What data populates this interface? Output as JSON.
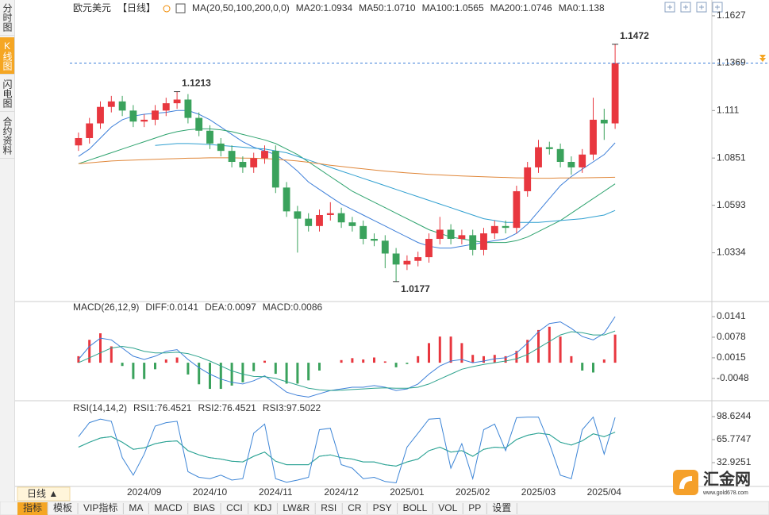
{
  "ui": {
    "sidebar_tabs": [
      "分时图",
      "K线图",
      "闪电图",
      "合约资料"
    ],
    "sidebar_active": "K线图",
    "period_button": "日线 ▲",
    "bottom_tabs": [
      "指标",
      "模板",
      "VIP指标",
      "MA",
      "MACD",
      "BIAS",
      "CCI",
      "KDJ",
      "LW&R",
      "RSI",
      "CR",
      "PSY",
      "BOLL",
      "VOL",
      "PP",
      "设置"
    ],
    "bottom_active": "指标",
    "bottom_highlight": "VIP指标",
    "logo": "汇金网",
    "logo_url": "www.gold678.com"
  },
  "chart_data": [
    {
      "type": "candlestick",
      "title": "欧元美元",
      "period": "【日线】",
      "indicator": "MA(20,50,100,200,0,0)",
      "categories": [
        null,
        null,
        null,
        null,
        null,
        null,
        "2024/09",
        null,
        null,
        null,
        null,
        null,
        "2024/10",
        null,
        null,
        null,
        null,
        null,
        "2024/11",
        null,
        null,
        null,
        null,
        null,
        "2024/12",
        null,
        null,
        null,
        null,
        null,
        "2025/01",
        null,
        null,
        null,
        null,
        null,
        "2025/02",
        null,
        null,
        null,
        null,
        null,
        "2025/03",
        null,
        null,
        null,
        null,
        null,
        "2025/04",
        null
      ],
      "open": [
        1.092,
        1.096,
        1.104,
        1.113,
        1.116,
        1.111,
        1.105,
        1.106,
        1.111,
        1.115,
        1.117,
        1.107,
        1.1,
        1.093,
        1.089,
        1.083,
        1.08,
        1.085,
        1.089,
        1.069,
        1.056,
        1.052,
        1.048,
        1.054,
        1.055,
        1.05,
        1.048,
        1.041,
        1.04,
        1.033,
        1.027,
        1.029,
        1.031,
        1.041,
        1.046,
        1.041,
        1.043,
        1.035,
        1.044,
        1.048,
        1.047,
        1.067,
        1.08,
        1.091,
        1.09,
        1.083,
        1.08,
        1.087,
        1.106,
        1.104
      ],
      "high": [
        1.099,
        1.107,
        1.116,
        1.119,
        1.119,
        1.114,
        1.109,
        1.114,
        1.118,
        1.1213,
        1.12,
        1.11,
        1.103,
        1.096,
        1.092,
        1.086,
        1.088,
        1.092,
        1.092,
        1.072,
        1.059,
        1.055,
        1.057,
        1.061,
        1.058,
        1.053,
        1.051,
        1.044,
        1.043,
        1.036,
        1.032,
        1.034,
        1.044,
        1.053,
        1.049,
        1.046,
        1.046,
        1.047,
        1.051,
        1.051,
        1.07,
        1.083,
        1.095,
        1.094,
        1.093,
        1.086,
        1.09,
        1.118,
        1.112,
        1.1472
      ],
      "low": [
        1.089,
        1.093,
        1.101,
        1.11,
        1.108,
        1.102,
        1.102,
        1.103,
        1.108,
        1.112,
        1.104,
        1.097,
        1.09,
        1.086,
        1.08,
        1.077,
        1.077,
        1.082,
        1.066,
        1.053,
        1.0335,
        1.045,
        1.045,
        1.051,
        1.047,
        1.045,
        1.038,
        1.037,
        1.025,
        1.0177,
        1.024,
        1.026,
        1.028,
        1.038,
        1.038,
        1.038,
        1.032,
        1.032,
        1.041,
        1.044,
        1.044,
        1.064,
        1.077,
        1.087,
        1.08,
        1.076,
        1.077,
        1.084,
        1.095,
        1.101
      ],
      "close": [
        1.096,
        1.104,
        1.113,
        1.116,
        1.111,
        1.105,
        1.106,
        1.111,
        1.115,
        1.117,
        1.107,
        1.1,
        1.093,
        1.089,
        1.083,
        1.08,
        1.085,
        1.089,
        1.069,
        1.056,
        1.052,
        1.048,
        1.054,
        1.055,
        1.05,
        1.048,
        1.041,
        1.04,
        1.033,
        1.027,
        1.029,
        1.031,
        1.041,
        1.046,
        1.041,
        1.043,
        1.035,
        1.044,
        1.048,
        1.047,
        1.067,
        1.08,
        1.091,
        1.09,
        1.083,
        1.08,
        1.087,
        1.106,
        1.104,
        1.1369
      ],
      "up_color": "#e8373f",
      "down_color": "#3aa25c",
      "last_price_line": true,
      "grid": false,
      "ylim": [
        1.0068,
        1.167
      ],
      "yticks": [
        1.1627,
        1.1369,
        1.111,
        1.0851,
        1.0593,
        1.0334
      ],
      "series": [
        {
          "name": "MA20:1.0934",
          "color": "#3d7fd9",
          "values": [
            1.086,
            1.09,
            1.096,
            1.102,
            1.106,
            1.108,
            1.109,
            1.1095,
            1.11,
            1.111,
            1.111,
            1.109,
            1.106,
            1.102,
            1.098,
            1.094,
            1.091,
            1.089,
            1.087,
            1.083,
            1.078,
            1.072,
            1.068,
            1.064,
            1.06,
            1.057,
            1.054,
            1.051,
            1.048,
            1.045,
            1.042,
            1.039,
            1.037,
            1.036,
            1.036,
            1.037,
            1.038,
            1.039,
            1.04,
            1.041,
            1.044,
            1.049,
            1.056,
            1.063,
            1.07,
            1.075,
            1.079,
            1.083,
            1.087,
            1.0934
          ]
        },
        {
          "name": "MA50:1.0710",
          "color": "#2ea36e",
          "values": [
            1.082,
            1.084,
            1.086,
            1.088,
            1.09,
            1.092,
            1.094,
            1.096,
            1.098,
            1.0995,
            1.1005,
            1.101,
            1.101,
            1.1005,
            1.0995,
            1.098,
            1.0965,
            1.095,
            1.093,
            1.09,
            1.087,
            1.083,
            1.079,
            1.075,
            1.071,
            1.067,
            1.064,
            1.061,
            1.058,
            1.055,
            1.052,
            1.049,
            1.046,
            1.044,
            1.042,
            1.041,
            1.04,
            1.039,
            1.039,
            1.039,
            1.04,
            1.042,
            1.045,
            1.048,
            1.051,
            1.055,
            1.059,
            1.063,
            1.067,
            1.071
          ]
        },
        {
          "name": "MA100:1.0565",
          "color": "#2f9fd0",
          "values": [
            null,
            null,
            null,
            null,
            null,
            null,
            null,
            1.092,
            1.0925,
            1.093,
            1.093,
            1.0928,
            1.0925,
            1.092,
            1.0915,
            1.091,
            1.0905,
            1.09,
            1.089,
            1.088,
            1.086,
            1.084,
            1.082,
            1.08,
            1.078,
            1.076,
            1.074,
            1.072,
            1.07,
            1.068,
            1.066,
            1.064,
            1.062,
            1.06,
            1.058,
            1.056,
            1.054,
            1.052,
            1.051,
            1.05,
            1.05,
            1.05,
            1.05,
            1.0505,
            1.051,
            1.0515,
            1.052,
            1.053,
            1.054,
            1.0565
          ]
        },
        {
          "name": "MA200:1.0746",
          "color": "#e0873a",
          "values": [
            1.082,
            1.0825,
            1.083,
            1.0835,
            1.0838,
            1.084,
            1.0842,
            1.0844,
            1.0846,
            1.0848,
            1.085,
            1.0851,
            1.0852,
            1.0852,
            1.0852,
            1.0851,
            1.085,
            1.0848,
            1.0845,
            1.084,
            1.0835,
            1.0828,
            1.082,
            1.0812,
            1.0805,
            1.0798,
            1.0792,
            1.0786,
            1.078,
            1.0775,
            1.077,
            1.0766,
            1.0762,
            1.0759,
            1.0756,
            1.0753,
            1.0751,
            1.0749,
            1.0747,
            1.0745,
            1.0743,
            1.0742,
            1.0741,
            1.0741,
            1.0742,
            1.0742,
            1.0743,
            1.0744,
            1.0745,
            1.0746
          ]
        }
      ],
      "extra_legend": [
        {
          "name": "MA0:1.138",
          "color": "#d66fc8"
        }
      ]
    },
    {
      "type": "macd",
      "title": "MACD(26,12,9)",
      "up_color": "#e8373f",
      "down_color": "#3aa25c",
      "ylim": [
        -0.0109,
        0.0158
      ],
      "yticks": [
        0.0141,
        0.0078,
        0.0015,
        -0.0048
      ],
      "series": [
        {
          "name": "DIFF:0.0141",
          "color": "#3d7fd9",
          "values": [
            0.001,
            0.005,
            0.0075,
            0.007,
            0.0045,
            0.002,
            0.001,
            0.002,
            0.0035,
            0.004,
            0.001,
            -0.0015,
            -0.0035,
            -0.005,
            -0.006,
            -0.0065,
            -0.0055,
            -0.004,
            -0.0065,
            -0.009,
            -0.01,
            -0.0105,
            -0.0095,
            -0.0085,
            -0.008,
            -0.0075,
            -0.0075,
            -0.007,
            -0.0075,
            -0.0085,
            -0.008,
            -0.0065,
            -0.0035,
            -0.001,
            0.0005,
            0.001,
            0.0,
            0.0005,
            0.0012,
            0.0015,
            0.003,
            0.006,
            0.0095,
            0.012,
            0.0125,
            0.0105,
            0.008,
            0.007,
            0.009,
            0.0141
          ]
        },
        {
          "name": "DEA:0.0097",
          "color": "#2ea38e",
          "values": [
            0.0,
            0.0015,
            0.003,
            0.0045,
            0.005,
            0.0045,
            0.0035,
            0.003,
            0.003,
            0.0032,
            0.0028,
            0.0018,
            0.0005,
            -0.001,
            -0.0025,
            -0.0035,
            -0.0042,
            -0.0043,
            -0.0048,
            -0.0058,
            -0.0068,
            -0.0078,
            -0.0083,
            -0.0085,
            -0.0084,
            -0.0082,
            -0.008,
            -0.0078,
            -0.0077,
            -0.0078,
            -0.0078,
            -0.0075,
            -0.0065,
            -0.005,
            -0.0035,
            -0.002,
            -0.0012,
            -0.0005,
            0.0,
            0.0005,
            0.0012,
            0.0025,
            0.0045,
            0.0065,
            0.0085,
            0.0095,
            0.0092,
            0.0085,
            0.0085,
            0.0097
          ]
        },
        {
          "name": "MACD:0.0086",
          "type": "histogram",
          "color": "#39a5c8",
          "values": [
            0.002,
            0.007,
            0.009,
            0.005,
            -0.001,
            -0.005,
            -0.005,
            -0.002,
            0.001,
            0.0016,
            -0.0036,
            -0.0066,
            -0.008,
            -0.008,
            -0.007,
            -0.006,
            -0.0026,
            0.0006,
            -0.0034,
            -0.0064,
            -0.0064,
            -0.0054,
            -0.0024,
            0,
            0.0008,
            0.0014,
            0.001,
            0.0016,
            0.0004,
            -0.0014,
            -0.0004,
            0.002,
            0.006,
            0.008,
            0.008,
            0.006,
            0.0024,
            0.002,
            0.0024,
            0.002,
            0.0036,
            0.007,
            0.01,
            0.011,
            0.008,
            0.002,
            -0.0024,
            -0.003,
            0.001,
            0.0086
          ]
        }
      ]
    },
    {
      "type": "line",
      "title": "RSI(14,14,2)",
      "ylim": [
        0.08,
        104.3
      ],
      "yticks": [
        98.6244,
        65.7747,
        32.9251
      ],
      "series": [
        {
          "name": "RSI1:76.4521",
          "color": "#39b0cf",
          "values": [
            55,
            62,
            68,
            70,
            62,
            52,
            54,
            60,
            63,
            64,
            50,
            44,
            40,
            38,
            35,
            34,
            42,
            48,
            35,
            30,
            30,
            30,
            42,
            44,
            40,
            38,
            34,
            34,
            30,
            28,
            34,
            38,
            50,
            55,
            48,
            50,
            42,
            52,
            55,
            54,
            66,
            72,
            75,
            73,
            62,
            58,
            64,
            74,
            70,
            76.4521
          ]
        },
        {
          "name": "RSI2:76.4521",
          "color": "#2ea38e",
          "values": [
            55,
            62,
            68,
            70,
            62,
            52,
            54,
            60,
            63,
            64,
            50,
            44,
            40,
            38,
            35,
            34,
            42,
            48,
            35,
            30,
            30,
            30,
            42,
            44,
            40,
            38,
            34,
            34,
            30,
            28,
            34,
            38,
            50,
            55,
            48,
            50,
            42,
            52,
            55,
            54,
            66,
            72,
            75,
            73,
            62,
            58,
            64,
            74,
            70,
            76.4521
          ]
        },
        {
          "name": "RSI3:97.5022",
          "color": "#3d85d6",
          "values": [
            70,
            90,
            95,
            92,
            40,
            15,
            45,
            85,
            90,
            92,
            20,
            12,
            10,
            15,
            8,
            10,
            75,
            88,
            10,
            5,
            8,
            12,
            80,
            82,
            30,
            25,
            10,
            12,
            6,
            4,
            55,
            75,
            95,
            96,
            25,
            60,
            10,
            80,
            88,
            50,
            97,
            98,
            98,
            60,
            15,
            10,
            80,
            98,
            45,
            97.5022
          ]
        }
      ]
    }
  ]
}
